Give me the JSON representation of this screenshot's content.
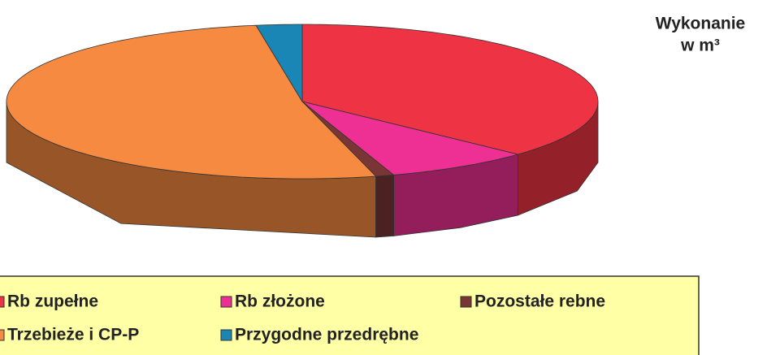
{
  "chart_data": {
    "type": "pie3d",
    "title": [
      "Wykonanie",
      "w m³"
    ],
    "categories": [
      "Rb zupełne",
      "Rb złożone",
      "Pozostałe rebne",
      "Trzebieże i CP-P",
      "Przygodne przedrębne"
    ],
    "values": [
      37,
      8,
      1,
      51.5,
      2.5
    ],
    "colors": [
      "#ee3344",
      "#ee2f93",
      "#7a3535",
      "#f58a40",
      "#1a86b5"
    ],
    "legend": "bottom"
  }
}
